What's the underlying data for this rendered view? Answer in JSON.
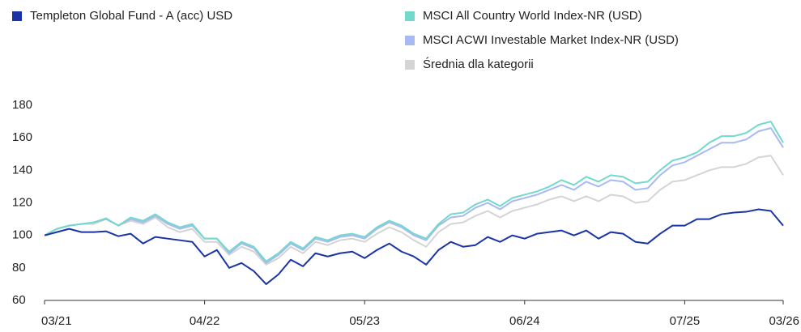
{
  "chart_data": {
    "type": "line",
    "categories": [
      "03/21",
      null,
      null,
      null,
      null,
      null,
      null,
      null,
      null,
      null,
      null,
      null,
      null,
      "04/22",
      null,
      null,
      null,
      null,
      null,
      null,
      null,
      null,
      null,
      null,
      null,
      null,
      "05/23",
      null,
      null,
      null,
      null,
      null,
      null,
      null,
      null,
      null,
      null,
      null,
      null,
      "06/24",
      null,
      null,
      null,
      null,
      null,
      null,
      null,
      null,
      null,
      null,
      null,
      null,
      "07/25",
      null,
      null,
      null,
      null,
      null,
      null,
      null,
      "03/26"
    ],
    "series": [
      {
        "name": "Templeton Global Fund - A (acc) USD",
        "color": "#1a34a8",
        "values": [
          100,
          102,
          104,
          102,
          102,
          102.5,
          99.5,
          101,
          95,
          99,
          98,
          97,
          96,
          87,
          91,
          80,
          83,
          78,
          70,
          76,
          85,
          81,
          89,
          87,
          89,
          90,
          86,
          91,
          95,
          90,
          87,
          82,
          91,
          96,
          93,
          94,
          99,
          96,
          100,
          98,
          101,
          102,
          103,
          100,
          103,
          98,
          102,
          101,
          96,
          95,
          101,
          106,
          106,
          110,
          110,
          113,
          114,
          114.5,
          116,
          115,
          106
        ]
      },
      {
        "name": "MSCI All Country World Index-NR (USD)",
        "color": "#72d9cc",
        "values": [
          100,
          104,
          106,
          107,
          108,
          110.5,
          106,
          111,
          109,
          113,
          108,
          105,
          107,
          98,
          98,
          90,
          96,
          93,
          84,
          89,
          96,
          92,
          99,
          97,
          100,
          101,
          99,
          105,
          109,
          106,
          101,
          98,
          107,
          113,
          114,
          119,
          122,
          118,
          123,
          125,
          127,
          130,
          134,
          131,
          136,
          133,
          137,
          136,
          132,
          133,
          140,
          146,
          148,
          151,
          157,
          161,
          161,
          163,
          168,
          170,
          157
        ]
      },
      {
        "name": "MSCI ACWI Investable Market Index-NR (USD)",
        "color": "#a9b9f2",
        "values": [
          100,
          104,
          106,
          107,
          108,
          110,
          106,
          110,
          108,
          112,
          107,
          104,
          106,
          98,
          98,
          89,
          95,
          92,
          83,
          88,
          95,
          91,
          98,
          96,
          99,
          100,
          98,
          104,
          108,
          105,
          100,
          97,
          106,
          111,
          112,
          117,
          120,
          116,
          121,
          123,
          125,
          128,
          131,
          128,
          133,
          130,
          134,
          133,
          128,
          129,
          137,
          143,
          145,
          149,
          153,
          157,
          157,
          159,
          164,
          166,
          154
        ]
      },
      {
        "name": "Średnia dla kategorii",
        "color": "#d4d4d4",
        "values": [
          100,
          104,
          106,
          107,
          107,
          110,
          106,
          109,
          107,
          111,
          105,
          102,
          104,
          96,
          96,
          88,
          93,
          90,
          82,
          86,
          93,
          89,
          96,
          94,
          97,
          98,
          96,
          101,
          105,
          102,
          97,
          93,
          102,
          107,
          108,
          112,
          115,
          111,
          115,
          117,
          119,
          122,
          124,
          121,
          124,
          121,
          125,
          124,
          120,
          121,
          128,
          133,
          134,
          137,
          140,
          142,
          142,
          144,
          148,
          149,
          137
        ]
      }
    ],
    "ylim": [
      60,
      180
    ],
    "yticks": [
      60,
      80,
      100,
      120,
      140,
      160,
      180
    ],
    "grid": false
  }
}
